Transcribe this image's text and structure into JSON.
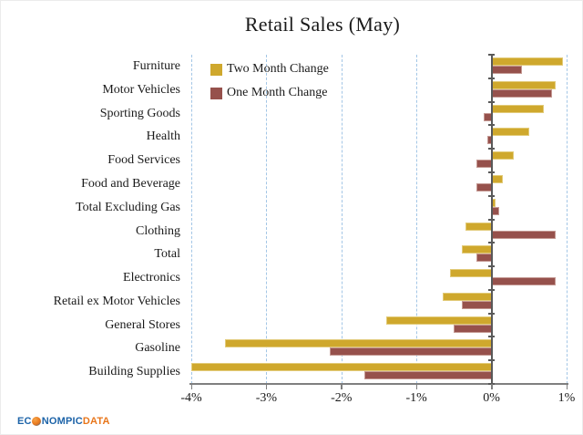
{
  "chart_data": {
    "type": "bar",
    "orientation": "horizontal",
    "title": "Retail Sales (May)",
    "categories": [
      "Furniture",
      "Motor Vehicles",
      "Sporting Goods",
      "Health",
      "Food Services",
      "Food and Beverage",
      "Total Excluding Gas",
      "Clothing",
      "Total",
      "Electronics",
      "Retail ex Motor Vehicles",
      "General Stores",
      "Gasoline",
      "Building Supplies"
    ],
    "series": [
      {
        "name": "Two Month Change",
        "color": "#CFA82D",
        "values": [
          0.95,
          0.85,
          0.7,
          0.5,
          0.3,
          0.15,
          0.05,
          -0.35,
          -0.4,
          -0.55,
          -0.65,
          -1.4,
          -3.55,
          -4.0
        ]
      },
      {
        "name": "One Month Change",
        "color": "#96514C",
        "values": [
          0.4,
          0.8,
          -0.1,
          -0.05,
          -0.2,
          -0.2,
          0.1,
          0.85,
          -0.2,
          0.85,
          -0.4,
          -0.5,
          -2.15,
          -1.7
        ]
      }
    ],
    "xlim": [
      -4,
      1
    ],
    "x_tick_values": [
      -4,
      -3,
      -2,
      -1,
      0,
      1
    ],
    "x_tick_labels": [
      "-4%",
      "-3%",
      "-2%",
      "-1%",
      "0%",
      "1%"
    ],
    "gridline_values": [
      -4,
      -3,
      -2,
      -1,
      1
    ],
    "grid_on": true,
    "grid_color": "#A3C6E6",
    "axis_color": "#595959",
    "legend_position": "inside top-left"
  },
  "branding": {
    "logo_prefix": "EC",
    "logo_mid": "NOMPIC",
    "logo_suffix": "DATA",
    "logo_blue": "#1C63A8",
    "logo_orange": "#E8761B",
    "globe_icon": "globe-icon"
  }
}
